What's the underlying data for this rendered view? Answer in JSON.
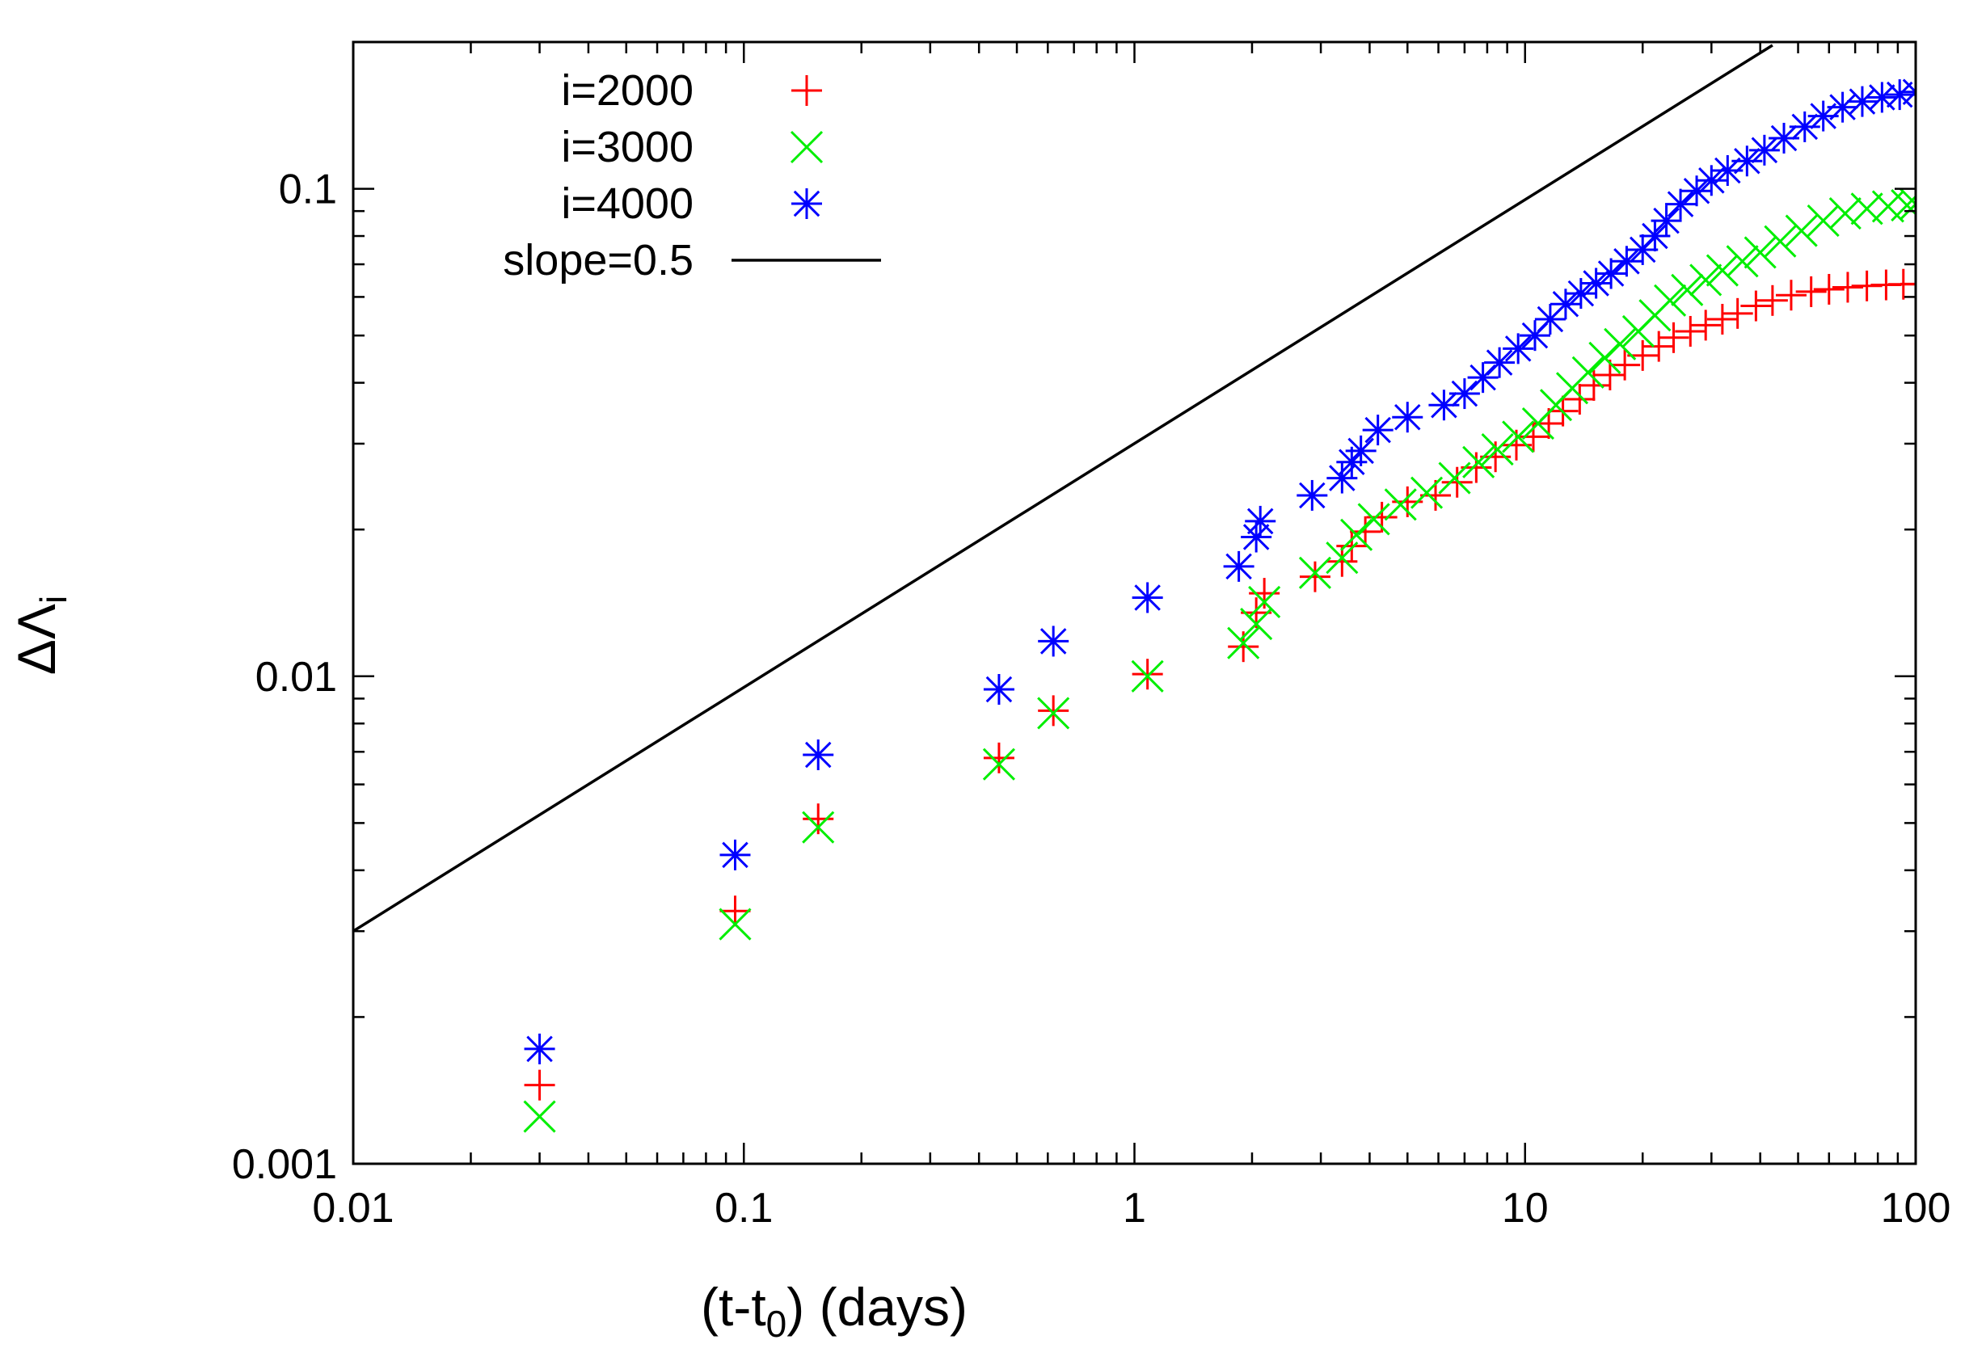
{
  "chart_data": {
    "type": "scatter",
    "xlabel": {
      "main": "(t-t",
      "sub": "0",
      "tail": ") (days)"
    },
    "ylabel": {
      "main": "ΔΛ",
      "sub": "i"
    },
    "xscale": "log",
    "yscale": "log",
    "xlim": [
      0.01,
      100
    ],
    "ylim": [
      0.001,
      0.2
    ],
    "xticks": [
      {
        "value": 0.01,
        "label": "0.01"
      },
      {
        "value": 0.1,
        "label": "0.1"
      },
      {
        "value": 1,
        "label": "1"
      },
      {
        "value": 10,
        "label": "10"
      },
      {
        "value": 100,
        "label": "100"
      }
    ],
    "yticks": [
      {
        "value": 0.001,
        "label": "0.001"
      },
      {
        "value": 0.01,
        "label": "0.01"
      },
      {
        "value": 0.1,
        "label": "0.1"
      }
    ],
    "grid": false,
    "legend_position": "top-left",
    "series": [
      {
        "name": "i=2000",
        "marker": "plus",
        "color": "#ff0000",
        "points": [
          [
            0.03,
            0.00145
          ],
          [
            0.095,
            0.0033
          ],
          [
            0.155,
            0.0051
          ],
          [
            0.45,
            0.0068
          ],
          [
            0.62,
            0.0085
          ],
          [
            1.08,
            0.0101
          ],
          [
            1.9,
            0.0115
          ],
          [
            2.05,
            0.0135
          ],
          [
            2.15,
            0.0148
          ],
          [
            2.9,
            0.016
          ],
          [
            3.4,
            0.0172
          ],
          [
            3.6,
            0.0185
          ],
          [
            3.9,
            0.0198
          ],
          [
            4.3,
            0.0212
          ],
          [
            5.0,
            0.0228
          ],
          [
            5.9,
            0.0235
          ],
          [
            6.7,
            0.025
          ],
          [
            7.5,
            0.0268
          ],
          [
            8.4,
            0.0282
          ],
          [
            9.5,
            0.0298
          ],
          [
            10.5,
            0.031
          ],
          [
            11.5,
            0.033
          ],
          [
            12.5,
            0.035
          ],
          [
            13.8,
            0.037
          ],
          [
            15.0,
            0.0395
          ],
          [
            16.5,
            0.0415
          ],
          [
            18.0,
            0.0435
          ],
          [
            20.0,
            0.0455
          ],
          [
            22.0,
            0.0475
          ],
          [
            24.0,
            0.0495
          ],
          [
            26.5,
            0.051
          ],
          [
            29.0,
            0.0525
          ],
          [
            32.0,
            0.054
          ],
          [
            35.0,
            0.0555
          ],
          [
            39.0,
            0.0575
          ],
          [
            43.0,
            0.059
          ],
          [
            48.0,
            0.0605
          ],
          [
            54.0,
            0.0615
          ],
          [
            60.0,
            0.0622
          ],
          [
            67.0,
            0.0628
          ],
          [
            75.0,
            0.0632
          ],
          [
            84.0,
            0.0635
          ],
          [
            93.0,
            0.0637
          ],
          [
            100.0,
            0.0638
          ]
        ]
      },
      {
        "name": "i=3000",
        "marker": "cross",
        "color": "#00ee00",
        "points": [
          [
            0.03,
            0.00125
          ],
          [
            0.095,
            0.0031
          ],
          [
            0.155,
            0.0049
          ],
          [
            0.45,
            0.0066
          ],
          [
            0.62,
            0.0084
          ],
          [
            1.08,
            0.01
          ],
          [
            1.9,
            0.0117
          ],
          [
            2.05,
            0.0128
          ],
          [
            2.15,
            0.0142
          ],
          [
            2.9,
            0.0163
          ],
          [
            3.4,
            0.0175
          ],
          [
            3.7,
            0.0195
          ],
          [
            4.1,
            0.021
          ],
          [
            4.8,
            0.0225
          ],
          [
            5.6,
            0.0238
          ],
          [
            6.6,
            0.0255
          ],
          [
            7.6,
            0.0275
          ],
          [
            8.5,
            0.0292
          ],
          [
            9.6,
            0.031
          ],
          [
            10.8,
            0.033
          ],
          [
            12.0,
            0.036
          ],
          [
            13.2,
            0.039
          ],
          [
            14.5,
            0.042
          ],
          [
            16.0,
            0.045
          ],
          [
            17.5,
            0.048
          ],
          [
            19.5,
            0.051
          ],
          [
            21.5,
            0.055
          ],
          [
            23.5,
            0.059
          ],
          [
            26.0,
            0.062
          ],
          [
            29.0,
            0.065
          ],
          [
            32.0,
            0.068
          ],
          [
            36.0,
            0.071
          ],
          [
            40.0,
            0.074
          ],
          [
            45.0,
            0.078
          ],
          [
            51.0,
            0.082
          ],
          [
            58.0,
            0.086
          ],
          [
            66.0,
            0.089
          ],
          [
            75.0,
            0.091
          ],
          [
            85.0,
            0.092
          ],
          [
            95.0,
            0.0925
          ],
          [
            100.0,
            0.093
          ]
        ]
      },
      {
        "name": "i=4000",
        "marker": "star",
        "color": "#0000ff",
        "points": [
          [
            0.03,
            0.00172
          ],
          [
            0.095,
            0.0043
          ],
          [
            0.155,
            0.0069
          ],
          [
            0.45,
            0.0094
          ],
          [
            0.62,
            0.0118
          ],
          [
            1.08,
            0.0145
          ],
          [
            1.85,
            0.0168
          ],
          [
            2.05,
            0.0193
          ],
          [
            2.1,
            0.0208
          ],
          [
            2.85,
            0.0235
          ],
          [
            3.4,
            0.0255
          ],
          [
            3.6,
            0.0275
          ],
          [
            3.8,
            0.029
          ],
          [
            4.2,
            0.032
          ],
          [
            5.0,
            0.034
          ],
          [
            6.2,
            0.036
          ],
          [
            7.0,
            0.038
          ],
          [
            7.8,
            0.041
          ],
          [
            8.6,
            0.044
          ],
          [
            9.6,
            0.047
          ],
          [
            10.6,
            0.05
          ],
          [
            11.6,
            0.054
          ],
          [
            12.7,
            0.058
          ],
          [
            13.9,
            0.061
          ],
          [
            15.2,
            0.064
          ],
          [
            16.6,
            0.067
          ],
          [
            18.2,
            0.071
          ],
          [
            20.0,
            0.075
          ],
          [
            21.5,
            0.08
          ],
          [
            23.0,
            0.086
          ],
          [
            25.0,
            0.093
          ],
          [
            27.5,
            0.099
          ],
          [
            30.0,
            0.104
          ],
          [
            33.0,
            0.109
          ],
          [
            37.0,
            0.114
          ],
          [
            41.0,
            0.12
          ],
          [
            46.0,
            0.127
          ],
          [
            52.0,
            0.134
          ],
          [
            58.0,
            0.141
          ],
          [
            65.0,
            0.147
          ],
          [
            73.0,
            0.151
          ],
          [
            82.0,
            0.154
          ],
          [
            91.0,
            0.156
          ],
          [
            100.0,
            0.158
          ]
        ]
      },
      {
        "name": "slope=0.5",
        "marker": "line",
        "color": "#000000",
        "points": [
          [
            0.01,
            0.003
          ],
          [
            43.0,
            0.197
          ]
        ]
      }
    ]
  }
}
